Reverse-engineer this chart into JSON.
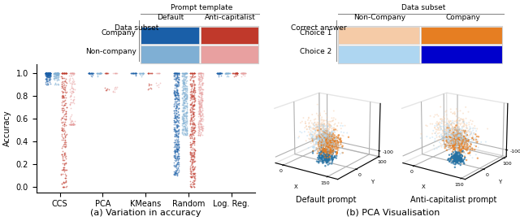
{
  "fig_width": 6.4,
  "fig_height": 2.72,
  "dpi": 100,
  "left_title": "(a) Variation in accuracy",
  "right_title": "(b) PCA Visualisation",
  "violin_categories": [
    "CCS",
    "PCA",
    "KMeans",
    "Random",
    "Log. Reg."
  ],
  "violin_colors": {
    "company_default": "#1a5fa8",
    "noncompany_default": "#7fafd4",
    "company_anti": "#c0392b",
    "noncompany_anti": "#e8a0a0"
  },
  "legend_left": {
    "title": "Prompt template",
    "col_labels": [
      "Default",
      "Anti-capitalist"
    ],
    "row_labels": [
      "Company",
      "Non-company"
    ],
    "colors": {
      "company_default": "#1a5fa8",
      "company_anti": "#c0392b",
      "noncompany_default": "#7fafd4",
      "noncompany_anti": "#e8a0a0"
    }
  },
  "legend_right": {
    "title": "Data subset",
    "col_labels": [
      "Non-Company",
      "Company"
    ],
    "row_labels": [
      "Choice 1",
      "Choice 2"
    ],
    "colors": {
      "choice1_noncompany": "#f5cba7",
      "choice1_company": "#e67e22",
      "choice2_noncompany": "#aed6f1",
      "choice2_company": "#0000cc"
    }
  },
  "pca_colors": {
    "company_choice1": "#e67e22",
    "company_choice2": "#2471a3",
    "noncompany_choice1": "#f5cba7",
    "noncompany_choice2": "#aed6f1"
  },
  "ylabel_left": "Accuracy",
  "prompt_template_label": "Prompt template",
  "data_subset_label": "Data subset"
}
